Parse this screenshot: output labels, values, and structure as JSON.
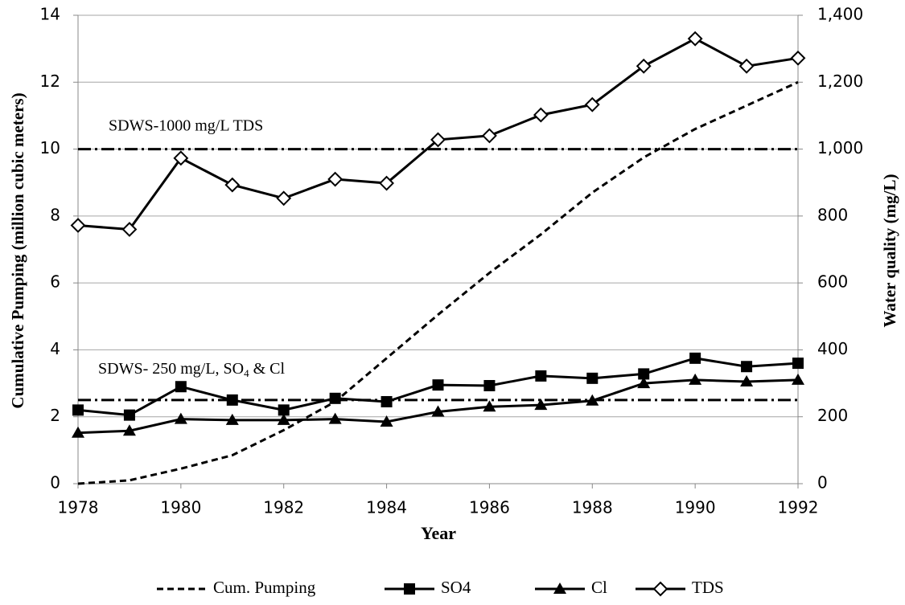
{
  "chart_data": {
    "type": "line",
    "x_label": "Year",
    "y_label": "Cumulative Pumping (million cubic meters)",
    "y2_label": "Water quality (mg/L)",
    "xlim": [
      1978,
      1992
    ],
    "xticks": [
      1978,
      1980,
      1982,
      1984,
      1986,
      1988,
      1990,
      1992
    ],
    "ylim": [
      0,
      14
    ],
    "yticks": [
      0,
      2,
      4,
      6,
      8,
      10,
      12,
      14
    ],
    "y2lim": [
      0,
      1400
    ],
    "y2ticks": [
      0,
      200,
      400,
      600,
      800,
      {
        "value": 1000,
        "label": "1,000"
      },
      {
        "value": 1200,
        "label": "1,200"
      },
      {
        "value": 1400,
        "label": "1,400"
      }
    ],
    "grid": true,
    "legend": "bottom",
    "x": [
      1978,
      1979,
      1980,
      1981,
      1982,
      1983,
      1984,
      1985,
      1986,
      1987,
      1988,
      1989,
      1990,
      1991,
      1992
    ],
    "series": [
      {
        "name": "Cum. Pumping",
        "color": "#000000",
        "dash": "dashed",
        "marker": "none",
        "values": [
          0,
          0.1,
          0.45,
          0.85,
          1.6,
          2.45,
          3.75,
          5.05,
          6.3,
          7.45,
          8.7,
          9.75,
          10.6,
          11.3,
          12
        ]
      },
      {
        "name": "SO4",
        "color": "#000000",
        "dash": "solid",
        "marker": "square",
        "axis": "y2",
        "values": [
          220,
          205,
          290,
          250,
          220,
          255,
          245,
          295,
          293,
          322,
          315,
          328,
          375,
          350,
          360
        ]
      },
      {
        "name": "Cl",
        "color": "#000000",
        "dash": "solid",
        "marker": "triangle",
        "axis": "y2",
        "values": [
          152,
          158,
          193,
          190,
          190,
          193,
          185,
          215,
          230,
          235,
          248,
          300,
          310,
          305,
          310
        ]
      },
      {
        "name": "TDS",
        "color": "#000000",
        "dash": "solid",
        "marker": "diamond",
        "axis": "y2",
        "values": [
          772,
          760,
          973,
          893,
          853,
          910,
          898,
          1028,
          1040,
          1102,
          1133,
          1248,
          1330,
          1248,
          1272
        ]
      }
    ],
    "reference_lines": [
      {
        "value": 1000,
        "axis": "y2",
        "label_parts": [
          "SDWS-1000 mg/L TDS"
        ]
      },
      {
        "value": 250,
        "axis": "y2",
        "label_parts": [
          "SDWS- 250 mg/L, SO",
          "4",
          " & Cl"
        ]
      }
    ]
  }
}
